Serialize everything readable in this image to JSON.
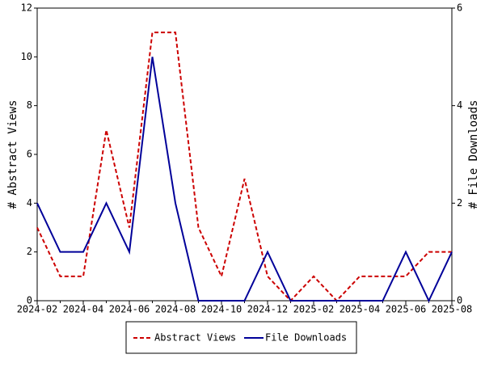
{
  "chart_data": {
    "type": "line",
    "categories": [
      "2024-02",
      null,
      "2024-04",
      null,
      "2024-06",
      null,
      "2024-08",
      null,
      "2024-10",
      null,
      "2024-12",
      null,
      "2025-02",
      null,
      "2025-04",
      null,
      "2025-06",
      null,
      "2025-08"
    ],
    "series": [
      {
        "name": "Abstract Views",
        "color": "#cc0000",
        "dash": true,
        "values": [
          3,
          1,
          1,
          7,
          3,
          11,
          11,
          3,
          1,
          5,
          1,
          0,
          1,
          0,
          1,
          1,
          1,
          2,
          2
        ]
      },
      {
        "name": "File Downloads",
        "color": "#000099",
        "dash": false,
        "axis": "y2",
        "values": [
          2,
          1,
          1,
          2,
          1,
          5,
          2,
          0,
          0,
          0,
          1,
          0,
          0,
          0,
          0,
          0,
          1,
          0,
          1
        ]
      }
    ],
    "ylabel": "# Abstract Views",
    "y2label": "# File Downloads",
    "ylim": [
      0,
      12
    ],
    "yticks": [
      0,
      2,
      4,
      6,
      8,
      10,
      12
    ],
    "y2lim": [
      0,
      6
    ],
    "y2ticks": [
      0,
      2,
      4,
      6
    ],
    "grid": false,
    "legend": "bottom"
  }
}
